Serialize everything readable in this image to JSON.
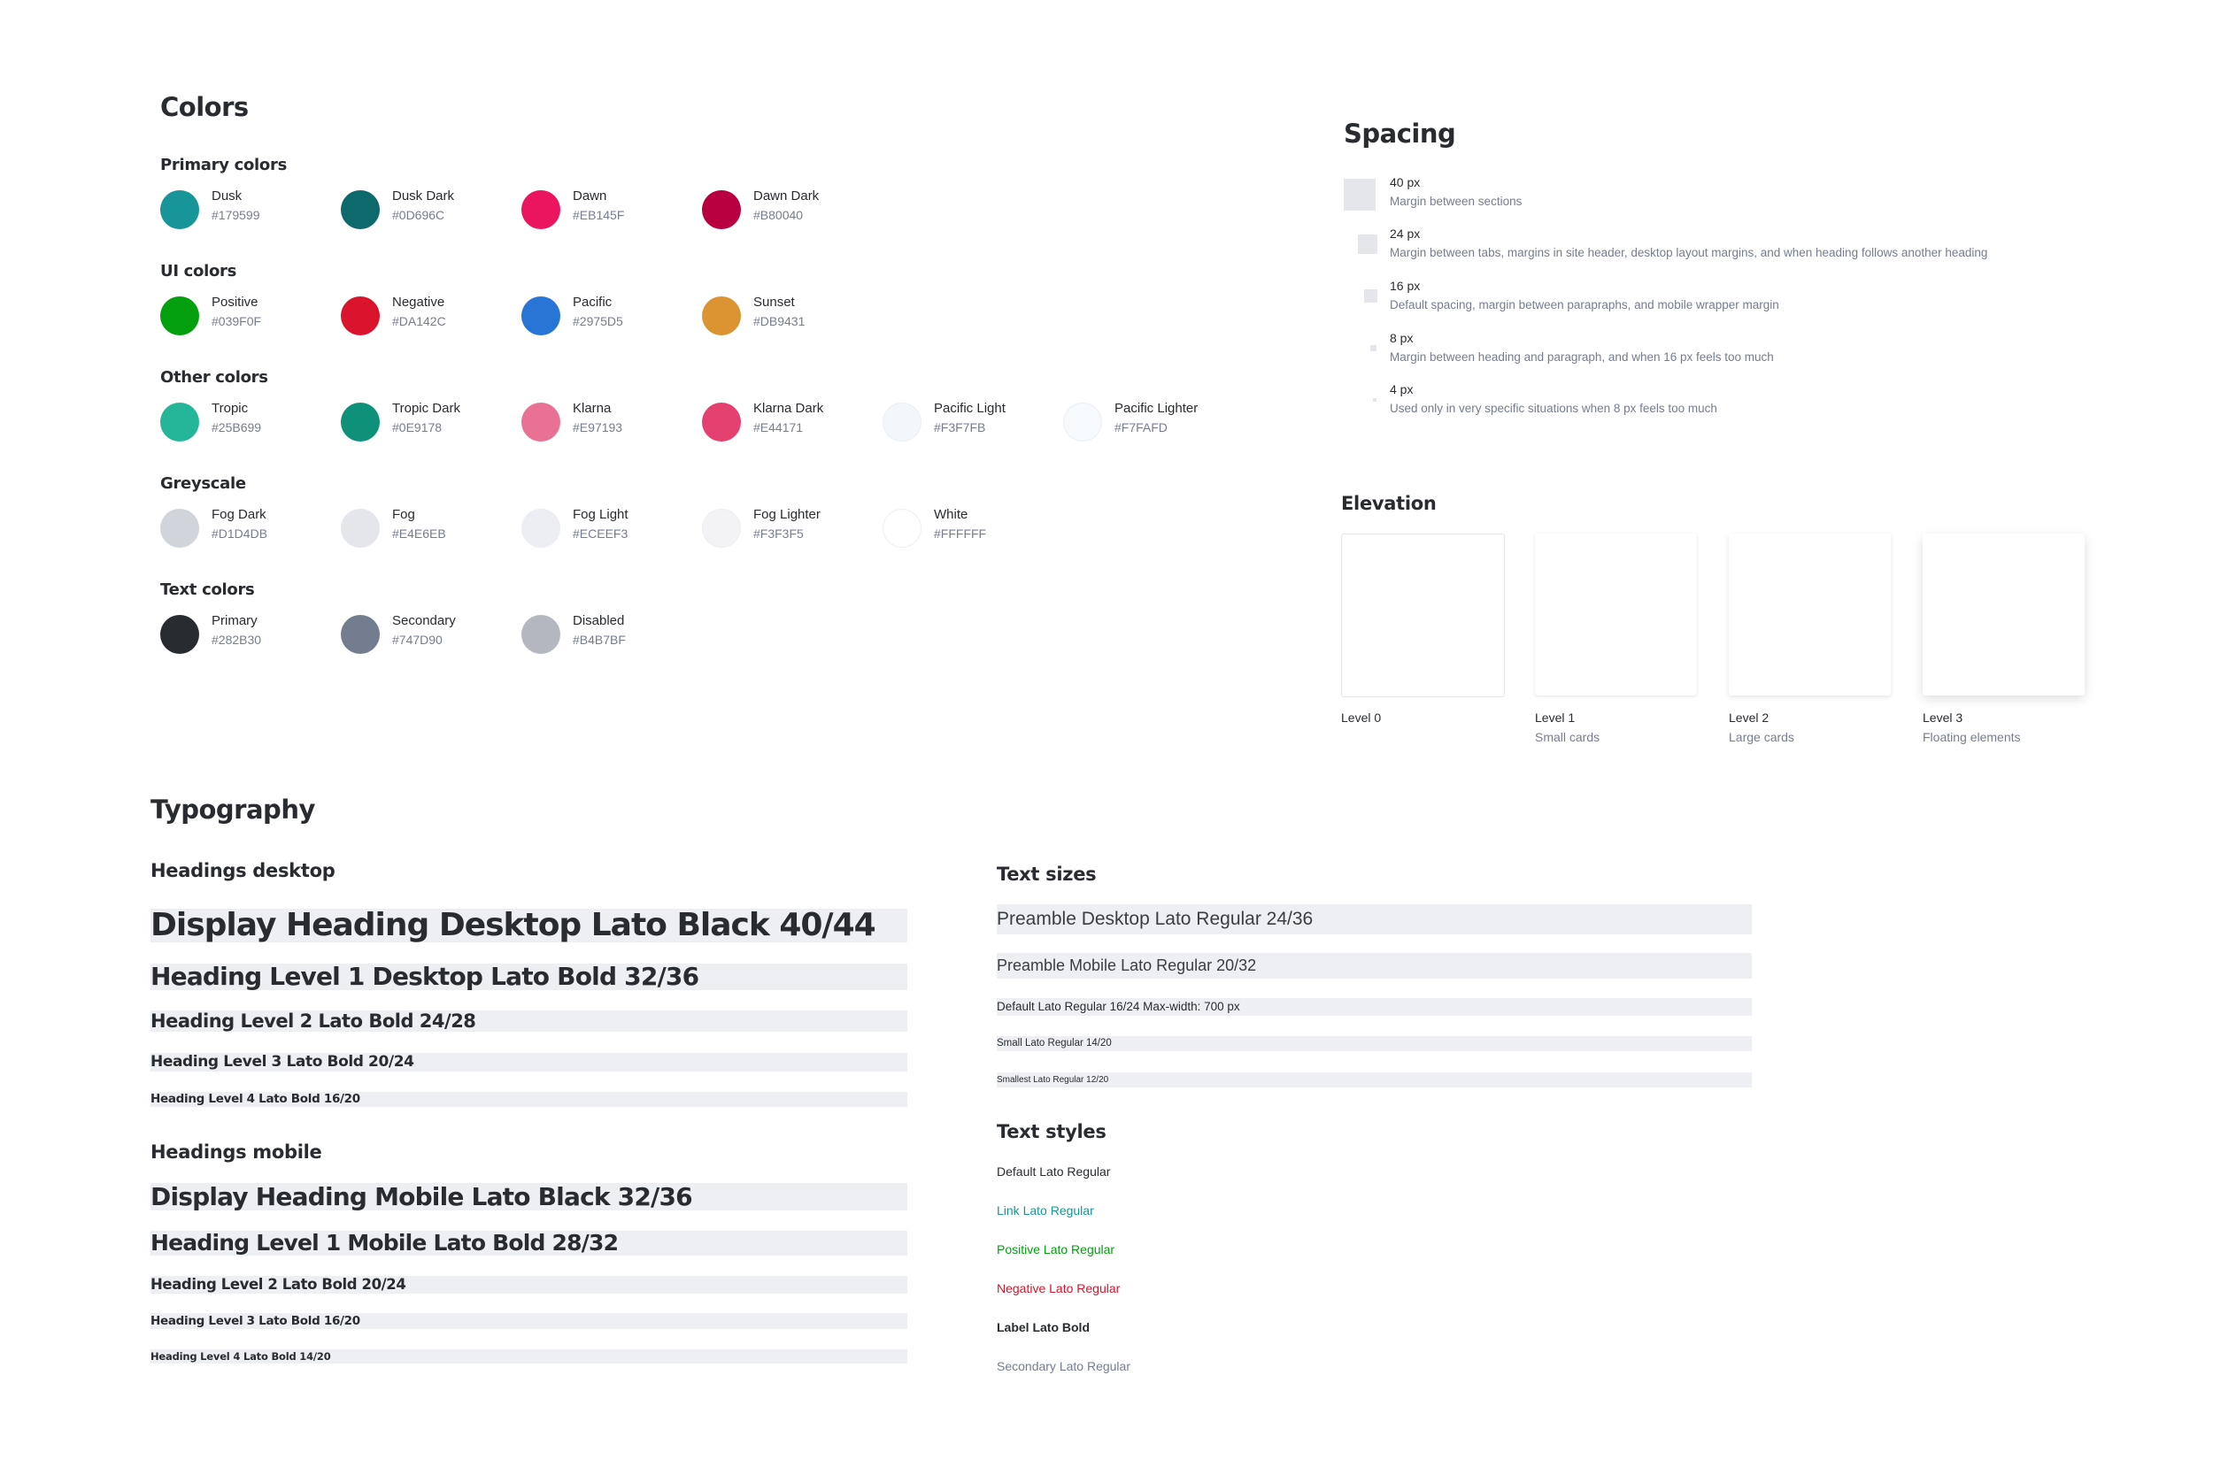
{
  "colors": {
    "title": "Colors",
    "groups": [
      {
        "label": "Primary colors",
        "swatches": [
          {
            "name": "Dusk",
            "hex": "#179599"
          },
          {
            "name": "Dusk Dark",
            "hex": "#0D696C"
          },
          {
            "name": "Dawn",
            "hex": "#EB145F"
          },
          {
            "name": "Dawn Dark",
            "hex": "#B80040"
          }
        ]
      },
      {
        "label": "UI colors",
        "swatches": [
          {
            "name": "Positive",
            "hex": "#039F0F"
          },
          {
            "name": "Negative",
            "hex": "#DA142C"
          },
          {
            "name": "Pacific",
            "hex": "#2975D5"
          },
          {
            "name": "Sunset",
            "hex": "#DB9431"
          }
        ]
      },
      {
        "label": "Other colors",
        "swatches": [
          {
            "name": "Tropic",
            "hex": "#25B699"
          },
          {
            "name": "Tropic Dark",
            "hex": "#0E9178"
          },
          {
            "name": "Klarna",
            "hex": "#E97193"
          },
          {
            "name": "Klarna Dark",
            "hex": "#E44171"
          },
          {
            "name": "Pacific Light",
            "hex": "#F3F7FB"
          },
          {
            "name": "Pacific Lighter",
            "hex": "#F7FAFD"
          }
        ]
      },
      {
        "label": "Greyscale",
        "swatches": [
          {
            "name": "Fog Dark",
            "hex": "#D1D4DB"
          },
          {
            "name": "Fog",
            "hex": "#E4E6EB"
          },
          {
            "name": "Fog Light",
            "hex": "#ECEEF3"
          },
          {
            "name": "Fog Lighter",
            "hex": "#F3F3F5"
          },
          {
            "name": "White",
            "hex": "#FFFFFF"
          }
        ]
      },
      {
        "label": "Text colors",
        "swatches": [
          {
            "name": "Primary",
            "hex": "#282B30"
          },
          {
            "name": "Secondary",
            "hex": "#747D90"
          },
          {
            "name": "Disabled",
            "hex": "#B4B7BF"
          }
        ]
      }
    ]
  },
  "spacing": {
    "title": "Spacing",
    "items": [
      {
        "size": "40 px",
        "desc": "Margin between sections"
      },
      {
        "size": "24 px",
        "desc": "Margin between tabs, margins in site header, desktop layout margins, and when heading follows another heading"
      },
      {
        "size": "16 px",
        "desc": "Default spacing, margin between parapraphs,  and mobile wrapper margin"
      },
      {
        "size": "8 px",
        "desc": "Margin between heading and paragraph, and when 16 px feels too much"
      },
      {
        "size": "4 px",
        "desc": "Used only in very specific situations when 8 px feels too much"
      }
    ]
  },
  "elevation": {
    "title": "Elevation",
    "levels": [
      {
        "name": "Level 0",
        "desc": ""
      },
      {
        "name": "Level 1",
        "desc": "Small cards"
      },
      {
        "name": "Level 2",
        "desc": "Large cards"
      },
      {
        "name": "Level 3",
        "desc": "Floating elements"
      }
    ]
  },
  "typography": {
    "title": "Typography",
    "headings_desktop": {
      "label": "Headings desktop",
      "items": [
        "Display Heading Desktop Lato Black 40/44",
        "Heading Level 1 Desktop Lato Bold 32/36",
        "Heading Level 2 Lato Bold 24/28",
        "Heading Level 3 Lato Bold 20/24",
        "Heading Level 4 Lato Bold 16/20"
      ]
    },
    "headings_mobile": {
      "label": "Headings mobile",
      "items": [
        "Display Heading Mobile Lato Black 32/36",
        "Heading Level 1 Mobile Lato Bold 28/32",
        "Heading Level 2 Lato Bold 20/24",
        "Heading Level 3 Lato Bold 16/20",
        "Heading Level 4 Lato Bold 14/20"
      ]
    },
    "text_sizes": {
      "label": "Text sizes",
      "items": [
        "Preamble Desktop Lato Regular 24/36",
        "Preamble Mobile Lato Regular 20/32",
        "Default Lato Regular 16/24 Max-width: 700 px",
        "Small Lato Regular 14/20",
        "Smallest  Lato Regular 12/20"
      ]
    },
    "text_styles": {
      "label": "Text styles",
      "items": [
        {
          "text": "Default Lato Regular",
          "color": "#282B30"
        },
        {
          "text": "Link Lato Regular",
          "color": "#179599"
        },
        {
          "text": "Positive Lato Regular",
          "color": "#039F0F"
        },
        {
          "text": "Negative Lato Regular",
          "color": "#DA142C"
        },
        {
          "text": "Label Lato Bold",
          "color": "#282B30"
        },
        {
          "text": "Secondary Lato Regular",
          "color": "#747D90"
        }
      ]
    }
  }
}
